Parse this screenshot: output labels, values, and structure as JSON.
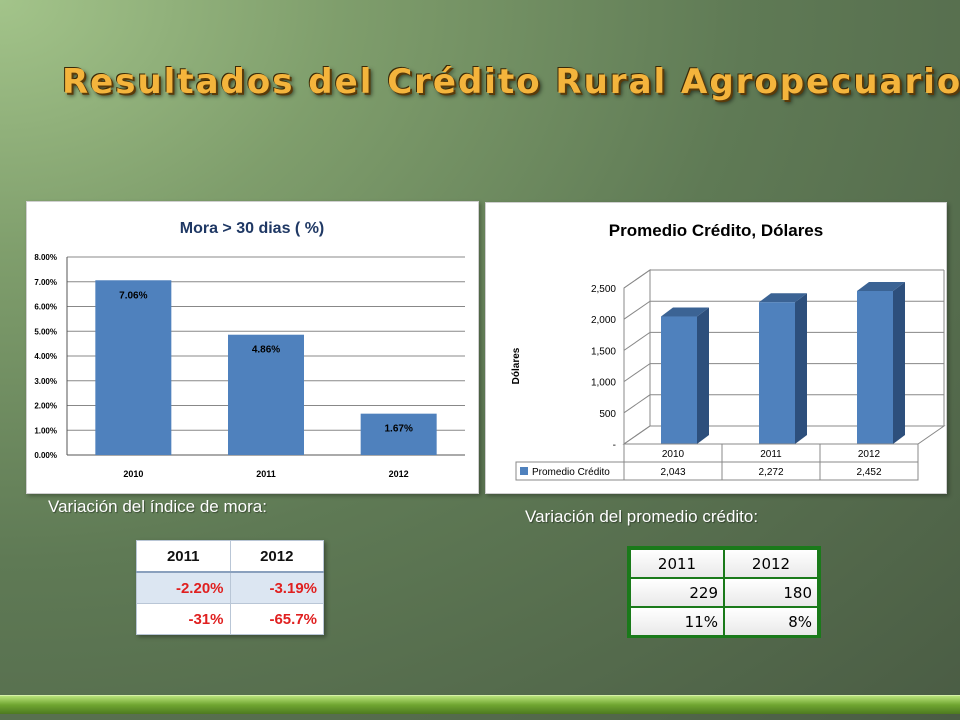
{
  "slide": {
    "title": "Resultados del Crédito Rural Agropecuario",
    "caption_mora": "Variación del índice de mora:",
    "caption_credito": "Variación del promedio crédito:"
  },
  "chart_data": [
    {
      "type": "bar",
      "title": "Mora > 30 dias ( %)",
      "categories": [
        "2010",
        "2011",
        "2012"
      ],
      "values": [
        7.06,
        4.86,
        1.67
      ],
      "data_labels": [
        "7.06%",
        "4.86%",
        "1.67%"
      ],
      "yticks": [
        "0.00%",
        "1.00%",
        "2.00%",
        "3.00%",
        "4.00%",
        "5.00%",
        "6.00%",
        "7.00%",
        "8.00%"
      ],
      "ylim": [
        0,
        8
      ],
      "grid": true,
      "bar_color": "#4f81bd"
    },
    {
      "type": "bar",
      "title": "Promedio Crédito, Dólares",
      "ylabel": "Dólares",
      "categories": [
        "2010",
        "2011",
        "2012"
      ],
      "series": [
        {
          "name": "Promedio Crédito",
          "values": [
            2043,
            2272,
            2452
          ]
        }
      ],
      "table_values": [
        "2,043",
        "2,272",
        "2,452"
      ],
      "yticks": [
        "-",
        "500",
        "1,000",
        "1,500",
        "2,000",
        "2,500"
      ],
      "ylim": [
        0,
        2500
      ],
      "grid": true,
      "style": "3d",
      "bar_color": "#4f81bd"
    }
  ],
  "table_mora": {
    "headers": [
      "2011",
      "2012"
    ],
    "rows": [
      [
        "-2.20%",
        "-3.19%"
      ],
      [
        "-31%",
        "-65.7%"
      ]
    ]
  },
  "table_credito": {
    "headers": [
      "2011",
      "2012"
    ],
    "rows": [
      [
        "229",
        "180"
      ],
      [
        "11%",
        "8%"
      ]
    ]
  }
}
